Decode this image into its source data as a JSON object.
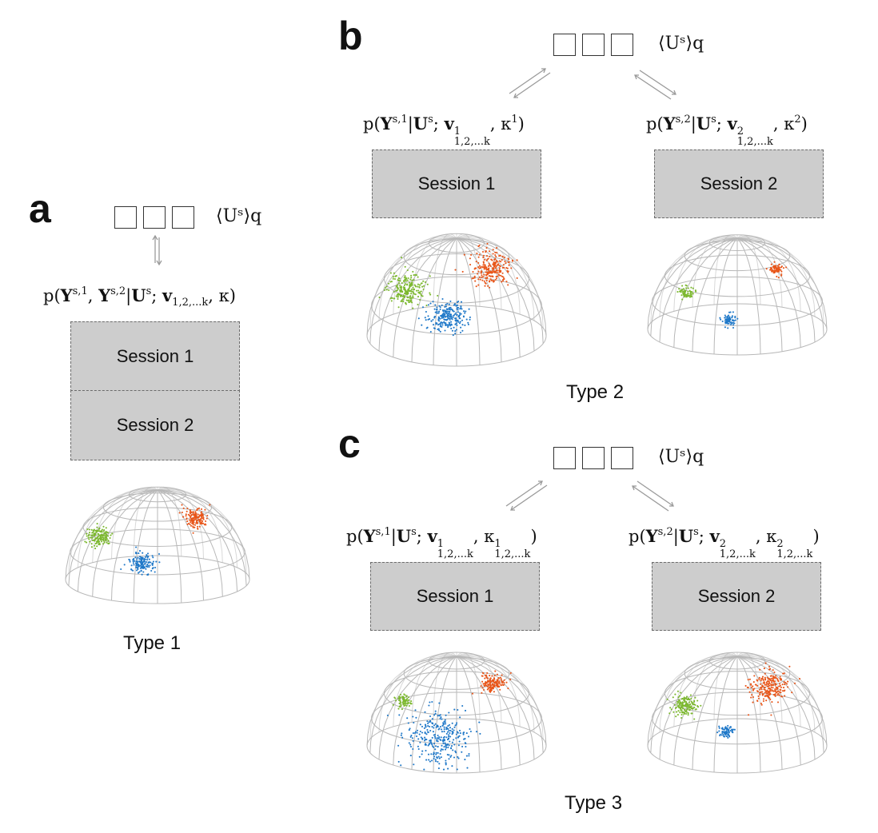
{
  "panels": {
    "a": {
      "letter": "a",
      "ustat": "⟨Uˢ⟩q",
      "likelihood": {
        "pre": "p(",
        "Y1": "Y",
        "Y1sup": "s,1",
        "comma": ", ",
        "Y2": "Y",
        "Y2sup": "s,2",
        "bar": "|",
        "U": "U",
        "Usup": "s",
        "semi": "; ",
        "v": "v",
        "vsub": "1,2,...k",
        "tail": ", κ)"
      },
      "sessions": [
        "Session 1",
        "Session 2"
      ],
      "type_label": "Type 1"
    },
    "b": {
      "letter": "b",
      "ustat": "⟨Uˢ⟩q",
      "left": {
        "pre": "p(",
        "Y": "Y",
        "Ysup": "s,1",
        "bar": "|",
        "U": "U",
        "Usup": "s",
        "semi": "; ",
        "v": "v",
        "vsup": "1",
        "vsub": "1,2,...k",
        "tail": ", κ",
        "ksup": "1",
        "close": ")"
      },
      "right": {
        "pre": "p(",
        "Y": "Y",
        "Ysup": "s,2",
        "bar": "|",
        "U": "U",
        "Usup": "s",
        "semi": "; ",
        "v": "v",
        "vsup": "2",
        "vsub": "1,2,...k",
        "tail": ", κ",
        "ksup": "2",
        "close": ")"
      },
      "sessions": [
        "Session 1",
        "Session 2"
      ],
      "type_label": "Type 2"
    },
    "c": {
      "letter": "c",
      "ustat": "⟨Uˢ⟩q",
      "left": {
        "pre": "p(",
        "Y": "Y",
        "Ysup": "s,1",
        "bar": "|",
        "U": "U",
        "Usup": "s",
        "semi": "; ",
        "v": "v",
        "vsup": "1",
        "vsub": "1,2,...k",
        "tail": ", κ",
        "ksup": "1",
        "ksub": "1,2,...k",
        "close": ")"
      },
      "right": {
        "pre": "p(",
        "Y": "Y",
        "Ysup": "s,2",
        "bar": "|",
        "U": "U",
        "Usup": "s",
        "semi": "; ",
        "v": "v",
        "vsup": "2",
        "vsub": "1,2,...k",
        "tail": ", κ",
        "ksup": "2",
        "ksub": "1,2,...k",
        "close": ")"
      },
      "sessions": [
        "Session 1",
        "Session 2"
      ],
      "type_label": "Type 3"
    }
  },
  "colors": {
    "green": "#7cb82f",
    "blue": "#1f78c8",
    "orange": "#e8561a",
    "session_fill": "#cdcdcd",
    "grid": "#b8b8b8"
  },
  "domes": [
    {
      "id": "dome-a",
      "clusters": [
        {
          "color": "green",
          "spread": "medium"
        },
        {
          "color": "blue",
          "spread": "medium"
        },
        {
          "color": "orange",
          "spread": "medium"
        }
      ]
    },
    {
      "id": "dome-b1",
      "clusters": [
        {
          "color": "green",
          "spread": "wide"
        },
        {
          "color": "blue",
          "spread": "wide"
        },
        {
          "color": "orange",
          "spread": "wide"
        }
      ]
    },
    {
      "id": "dome-b2",
      "clusters": [
        {
          "color": "green",
          "spread": "tight"
        },
        {
          "color": "blue",
          "spread": "tight"
        },
        {
          "color": "orange",
          "spread": "tight"
        }
      ]
    },
    {
      "id": "dome-c1",
      "clusters": [
        {
          "color": "green",
          "spread": "tight"
        },
        {
          "color": "blue",
          "spread": "very-wide"
        },
        {
          "color": "orange",
          "spread": "medium"
        }
      ]
    },
    {
      "id": "dome-c2",
      "clusters": [
        {
          "color": "green",
          "spread": "medium"
        },
        {
          "color": "blue",
          "spread": "tight"
        },
        {
          "color": "orange",
          "spread": "wide"
        }
      ]
    }
  ]
}
